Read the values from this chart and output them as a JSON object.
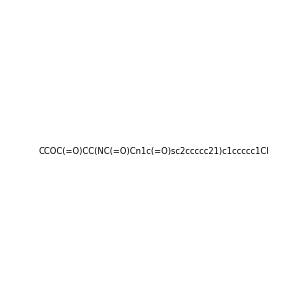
{
  "smiles": "CCOC(=O)CC(NC(=O)Cn1c(=O)sc2ccccc21)c1ccccc1Cl",
  "image_size": 300,
  "background_color": "#e8e8e8",
  "title": ""
}
